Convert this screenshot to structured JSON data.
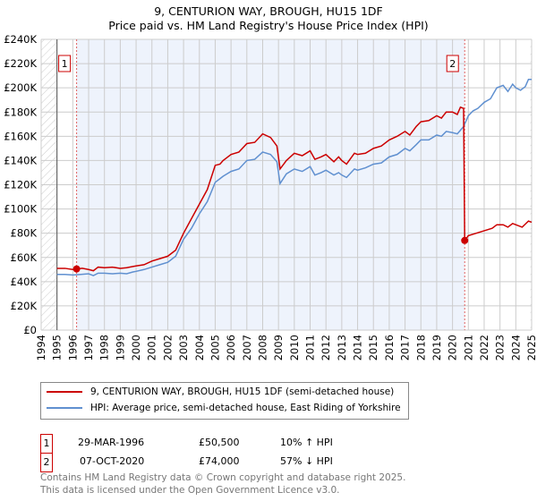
{
  "title": "9, CENTURION WAY, BROUGH, HU15 1DF",
  "subtitle": "Price paid vs. HM Land Registry's House Price Index (HPI)",
  "colors": {
    "property": "#cc0000",
    "hpi": "#6090d0",
    "shade": "#eef3fc"
  },
  "chart_data": {
    "type": "line",
    "xlim": [
      1994,
      2025
    ],
    "ylim": [
      0,
      240000
    ],
    "y_ticks": [
      0,
      20000,
      40000,
      60000,
      80000,
      100000,
      120000,
      140000,
      160000,
      180000,
      200000,
      220000,
      240000
    ],
    "y_tick_labels": [
      "£0",
      "£20K",
      "£40K",
      "£60K",
      "£80K",
      "£100K",
      "£120K",
      "£140K",
      "£160K",
      "£180K",
      "£200K",
      "£220K",
      "£240K"
    ],
    "x_tick_labels": [
      "1994",
      "1995",
      "1996",
      "1997",
      "1998",
      "1999",
      "2000",
      "2001",
      "2002",
      "2003",
      "2004",
      "2005",
      "2006",
      "2007",
      "2008",
      "2009",
      "2010",
      "2011",
      "2012",
      "2013",
      "2014",
      "2015",
      "2016",
      "2017",
      "2018",
      "2019",
      "2020",
      "2021",
      "2022",
      "2023",
      "2024",
      "2025"
    ],
    "grid": true,
    "series": [
      {
        "name": "9, CENTURION WAY, BROUGH, HU15 1DF (semi-detached house)",
        "color": "#cc0000",
        "points": [
          [
            1995,
            51000
          ],
          [
            1995.5,
            51000
          ],
          [
            1996,
            50000
          ],
          [
            1996.24,
            50500
          ],
          [
            1996.6,
            51000
          ],
          [
            1997,
            50000
          ],
          [
            1997.3,
            49000
          ],
          [
            1997.6,
            52000
          ],
          [
            1998,
            51500
          ],
          [
            1998.5,
            52000
          ],
          [
            1999,
            51000
          ],
          [
            1999.4,
            51500
          ],
          [
            1999.8,
            52500
          ],
          [
            2000,
            53000
          ],
          [
            2000.5,
            54000
          ],
          [
            2001,
            57000
          ],
          [
            2001.5,
            59000
          ],
          [
            2002,
            61000
          ],
          [
            2002.5,
            66000
          ],
          [
            2003,
            80000
          ],
          [
            2003.5,
            92000
          ],
          [
            2004,
            104000
          ],
          [
            2004.5,
            116000
          ],
          [
            2005,
            136000
          ],
          [
            2005.3,
            137000
          ],
          [
            2005.5,
            140000
          ],
          [
            2006,
            145000
          ],
          [
            2006.5,
            147000
          ],
          [
            2007,
            154000
          ],
          [
            2007.5,
            155000
          ],
          [
            2008,
            162000
          ],
          [
            2008.5,
            159000
          ],
          [
            2008.9,
            152000
          ],
          [
            2009.1,
            133000
          ],
          [
            2009.5,
            140000
          ],
          [
            2010,
            146000
          ],
          [
            2010.5,
            144000
          ],
          [
            2011,
            148000
          ],
          [
            2011.3,
            141000
          ],
          [
            2011.7,
            143000
          ],
          [
            2012,
            145000
          ],
          [
            2012.5,
            139000
          ],
          [
            2012.8,
            143000
          ],
          [
            2013,
            140000
          ],
          [
            2013.3,
            137000
          ],
          [
            2013.8,
            146000
          ],
          [
            2014,
            145000
          ],
          [
            2014.5,
            146000
          ],
          [
            2015,
            150000
          ],
          [
            2015.5,
            152000
          ],
          [
            2016,
            157000
          ],
          [
            2016.5,
            160000
          ],
          [
            2017,
            164000
          ],
          [
            2017.3,
            161000
          ],
          [
            2017.7,
            168000
          ],
          [
            2018,
            172000
          ],
          [
            2018.5,
            173000
          ],
          [
            2019,
            177000
          ],
          [
            2019.3,
            175000
          ],
          [
            2019.6,
            180000
          ],
          [
            2020,
            180000
          ],
          [
            2020.3,
            178000
          ],
          [
            2020.5,
            184000
          ],
          [
            2020.7,
            183000
          ],
          [
            2020.77,
            74000
          ],
          [
            2021,
            78000
          ],
          [
            2021.5,
            80000
          ],
          [
            2022,
            82000
          ],
          [
            2022.5,
            84000
          ],
          [
            2022.8,
            87000
          ],
          [
            2023.2,
            87000
          ],
          [
            2023.5,
            85000
          ],
          [
            2023.8,
            88000
          ],
          [
            2024,
            87000
          ],
          [
            2024.4,
            85000
          ],
          [
            2024.8,
            90000
          ],
          [
            2025,
            89000
          ]
        ]
      },
      {
        "name": "HPI: Average price, semi-detached house, East Riding of Yorkshire",
        "color": "#6090d0",
        "points": [
          [
            1995,
            46000
          ],
          [
            1995.5,
            46000
          ],
          [
            1996,
            45500
          ],
          [
            1996.5,
            46000
          ],
          [
            1997,
            46500
          ],
          [
            1997.3,
            45000
          ],
          [
            1997.6,
            47000
          ],
          [
            1998,
            47000
          ],
          [
            1998.5,
            46500
          ],
          [
            1999,
            47000
          ],
          [
            1999.4,
            46500
          ],
          [
            1999.8,
            48000
          ],
          [
            2000,
            48500
          ],
          [
            2000.5,
            50000
          ],
          [
            2001,
            52000
          ],
          [
            2001.5,
            54000
          ],
          [
            2002,
            56000
          ],
          [
            2002.5,
            61000
          ],
          [
            2003,
            75000
          ],
          [
            2003.5,
            84000
          ],
          [
            2004,
            96000
          ],
          [
            2004.5,
            106000
          ],
          [
            2005,
            122000
          ],
          [
            2005.3,
            125000
          ],
          [
            2005.5,
            127000
          ],
          [
            2006,
            131000
          ],
          [
            2006.5,
            133000
          ],
          [
            2007,
            140000
          ],
          [
            2007.5,
            141000
          ],
          [
            2008,
            147000
          ],
          [
            2008.5,
            145000
          ],
          [
            2008.9,
            139000
          ],
          [
            2009.1,
            121000
          ],
          [
            2009.5,
            129000
          ],
          [
            2010,
            133000
          ],
          [
            2010.5,
            131000
          ],
          [
            2011,
            135000
          ],
          [
            2011.3,
            128000
          ],
          [
            2011.7,
            130000
          ],
          [
            2012,
            132000
          ],
          [
            2012.5,
            128000
          ],
          [
            2012.8,
            130000
          ],
          [
            2013,
            128000
          ],
          [
            2013.3,
            126000
          ],
          [
            2013.8,
            133000
          ],
          [
            2014,
            132000
          ],
          [
            2014.5,
            134000
          ],
          [
            2015,
            137000
          ],
          [
            2015.5,
            138000
          ],
          [
            2016,
            143000
          ],
          [
            2016.5,
            145000
          ],
          [
            2017,
            150000
          ],
          [
            2017.3,
            148000
          ],
          [
            2017.7,
            153000
          ],
          [
            2018,
            157000
          ],
          [
            2018.5,
            157000
          ],
          [
            2019,
            161000
          ],
          [
            2019.3,
            160000
          ],
          [
            2019.6,
            164000
          ],
          [
            2020,
            163000
          ],
          [
            2020.3,
            162000
          ],
          [
            2020.7,
            168000
          ],
          [
            2021,
            177000
          ],
          [
            2021.3,
            181000
          ],
          [
            2021.6,
            183000
          ],
          [
            2022,
            188000
          ],
          [
            2022.4,
            191000
          ],
          [
            2022.8,
            200000
          ],
          [
            2023.2,
            202000
          ],
          [
            2023.5,
            197000
          ],
          [
            2023.8,
            203000
          ],
          [
            2024,
            200000
          ],
          [
            2024.3,
            198000
          ],
          [
            2024.6,
            201000
          ],
          [
            2024.8,
            207000
          ],
          [
            2025,
            207000
          ]
        ]
      }
    ],
    "annotations": [
      {
        "label": "1",
        "x": 1996.24,
        "value": 50500
      },
      {
        "label": "2",
        "x": 2020.77,
        "value": 74000
      }
    ],
    "legend_position": "below"
  },
  "legend": [
    "9, CENTURION WAY, BROUGH, HU15 1DF (semi-detached house)",
    "HPI: Average price, semi-detached house, East Riding of Yorkshire"
  ],
  "transactions": [
    {
      "num": "1",
      "date": "29-MAR-1996",
      "price": "£50,500",
      "hpi": "10% ↑ HPI"
    },
    {
      "num": "2",
      "date": "07-OCT-2020",
      "price": "£74,000",
      "hpi": "57% ↓ HPI"
    }
  ],
  "footer": [
    "Contains HM Land Registry data © Crown copyright and database right 2025.",
    "This data is licensed under the Open Government Licence v3.0."
  ]
}
